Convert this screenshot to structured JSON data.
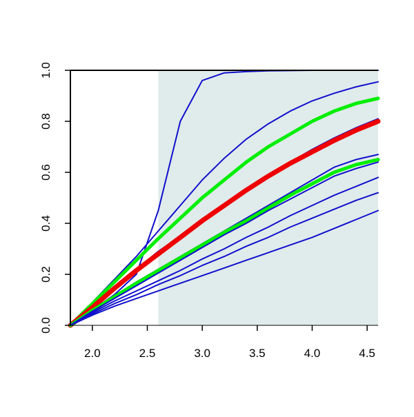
{
  "chart_data": {
    "type": "line",
    "title": "",
    "xlabel": "",
    "ylabel": "",
    "xlim": [
      1.8,
      4.6
    ],
    "ylim": [
      0,
      1
    ],
    "x_ticks": [
      "2.0",
      "2.5",
      "3.0",
      "3.5",
      "4.0",
      "4.5"
    ],
    "y_ticks": [
      "0.0",
      "0.2",
      "0.4",
      "0.6",
      "0.8",
      "1.0"
    ],
    "shaded_region": {
      "x_from": 2.6,
      "x_to": 4.6,
      "color": "#e0ebeb"
    },
    "grid": false,
    "legend": "none",
    "x": [
      1.8,
      2.0,
      2.2,
      2.4,
      2.6,
      2.8,
      3.0,
      3.2,
      3.4,
      3.6,
      3.8,
      4.0,
      4.2,
      4.4,
      4.6
    ],
    "series": [
      {
        "color": "#1010cc",
        "width": 2,
        "values": [
          0.0,
          0.06,
          0.12,
          0.2,
          0.45,
          0.8,
          0.96,
          0.99,
          0.995,
          0.998,
          0.999,
          1.0,
          1.0,
          1.0,
          1.0
        ]
      },
      {
        "color": "#1010cc",
        "width": 2,
        "values": [
          0.0,
          0.09,
          0.18,
          0.27,
          0.37,
          0.47,
          0.57,
          0.655,
          0.73,
          0.79,
          0.84,
          0.88,
          0.91,
          0.935,
          0.955
        ]
      },
      {
        "color": "#00ee00",
        "width": 5,
        "values": [
          0.0,
          0.085,
          0.17,
          0.255,
          0.34,
          0.42,
          0.5,
          0.57,
          0.64,
          0.7,
          0.75,
          0.8,
          0.84,
          0.87,
          0.89
        ]
      },
      {
        "color": "#1010cc",
        "width": 2,
        "values": [
          0.0,
          0.075,
          0.15,
          0.22,
          0.29,
          0.35,
          0.415,
          0.475,
          0.535,
          0.59,
          0.64,
          0.69,
          0.735,
          0.775,
          0.81
        ]
      },
      {
        "color": "#ee0000",
        "width": 7,
        "values": [
          0.0,
          0.07,
          0.145,
          0.215,
          0.28,
          0.345,
          0.41,
          0.47,
          0.53,
          0.585,
          0.635,
          0.68,
          0.725,
          0.765,
          0.8
        ]
      },
      {
        "color": "#1010cc",
        "width": 2,
        "values": [
          0.0,
          0.06,
          0.115,
          0.17,
          0.22,
          0.27,
          0.32,
          0.37,
          0.42,
          0.47,
          0.52,
          0.57,
          0.62,
          0.65,
          0.67
        ]
      },
      {
        "color": "#00ee00",
        "width": 5,
        "values": [
          0.0,
          0.058,
          0.112,
          0.165,
          0.215,
          0.265,
          0.315,
          0.365,
          0.41,
          0.46,
          0.51,
          0.555,
          0.6,
          0.63,
          0.65
        ]
      },
      {
        "color": "#1010cc",
        "width": 2,
        "values": [
          0.0,
          0.055,
          0.105,
          0.155,
          0.205,
          0.255,
          0.305,
          0.355,
          0.4,
          0.45,
          0.495,
          0.54,
          0.585,
          0.615,
          0.64
        ]
      },
      {
        "color": "#1010cc",
        "width": 2,
        "values": [
          0.0,
          0.05,
          0.095,
          0.135,
          0.175,
          0.215,
          0.26,
          0.3,
          0.345,
          0.385,
          0.43,
          0.47,
          0.51,
          0.545,
          0.58
        ]
      },
      {
        "color": "#1010cc",
        "width": 2,
        "values": [
          0.0,
          0.045,
          0.085,
          0.12,
          0.16,
          0.195,
          0.235,
          0.27,
          0.31,
          0.345,
          0.385,
          0.42,
          0.455,
          0.49,
          0.52
        ]
      },
      {
        "color": "#1010cc",
        "width": 2,
        "values": [
          0.0,
          0.04,
          0.075,
          0.105,
          0.135,
          0.165,
          0.195,
          0.225,
          0.255,
          0.285,
          0.315,
          0.345,
          0.38,
          0.415,
          0.45
        ]
      }
    ]
  }
}
